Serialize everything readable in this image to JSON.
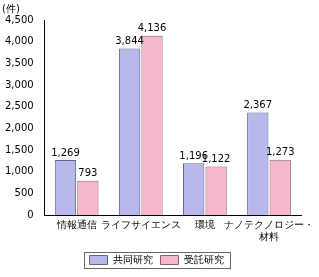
{
  "chart_data": {
    "type": "bar",
    "y_label": "(件)",
    "categories": [
      "情報通信",
      "ライフサイエンス",
      "環境",
      "ナノテクノロジー・材料"
    ],
    "series": [
      {
        "name": "共同研究",
        "color": "#b8b8ea",
        "values": [
          1269,
          3844,
          1196,
          2367
        ],
        "value_labels": [
          "1,269",
          "3,844",
          "1,196",
          "2,367"
        ]
      },
      {
        "name": "受託研究",
        "color": "#f5b8cb",
        "values": [
          793,
          4136,
          1122,
          1273
        ],
        "value_labels": [
          "793",
          "4,136",
          "1,122",
          "1,273"
        ]
      }
    ],
    "ylim": [
      0,
      4500
    ],
    "yticks": [
      0,
      500,
      {
        "value": 1000,
        "label": "1,000"
      },
      {
        "value": 1500,
        "label": "1,500"
      },
      {
        "value": 2000,
        "label": "2,000"
      },
      {
        "value": 2500,
        "label": "2,500"
      },
      {
        "value": 3000,
        "label": "3,000"
      },
      {
        "value": 3500,
        "label": "3,500"
      },
      {
        "value": 4000,
        "label": "4,000"
      },
      {
        "value": 4500,
        "label": "4,500"
      }
    ],
    "grid": false,
    "legend": "bottom",
    "data_labels": true
  }
}
